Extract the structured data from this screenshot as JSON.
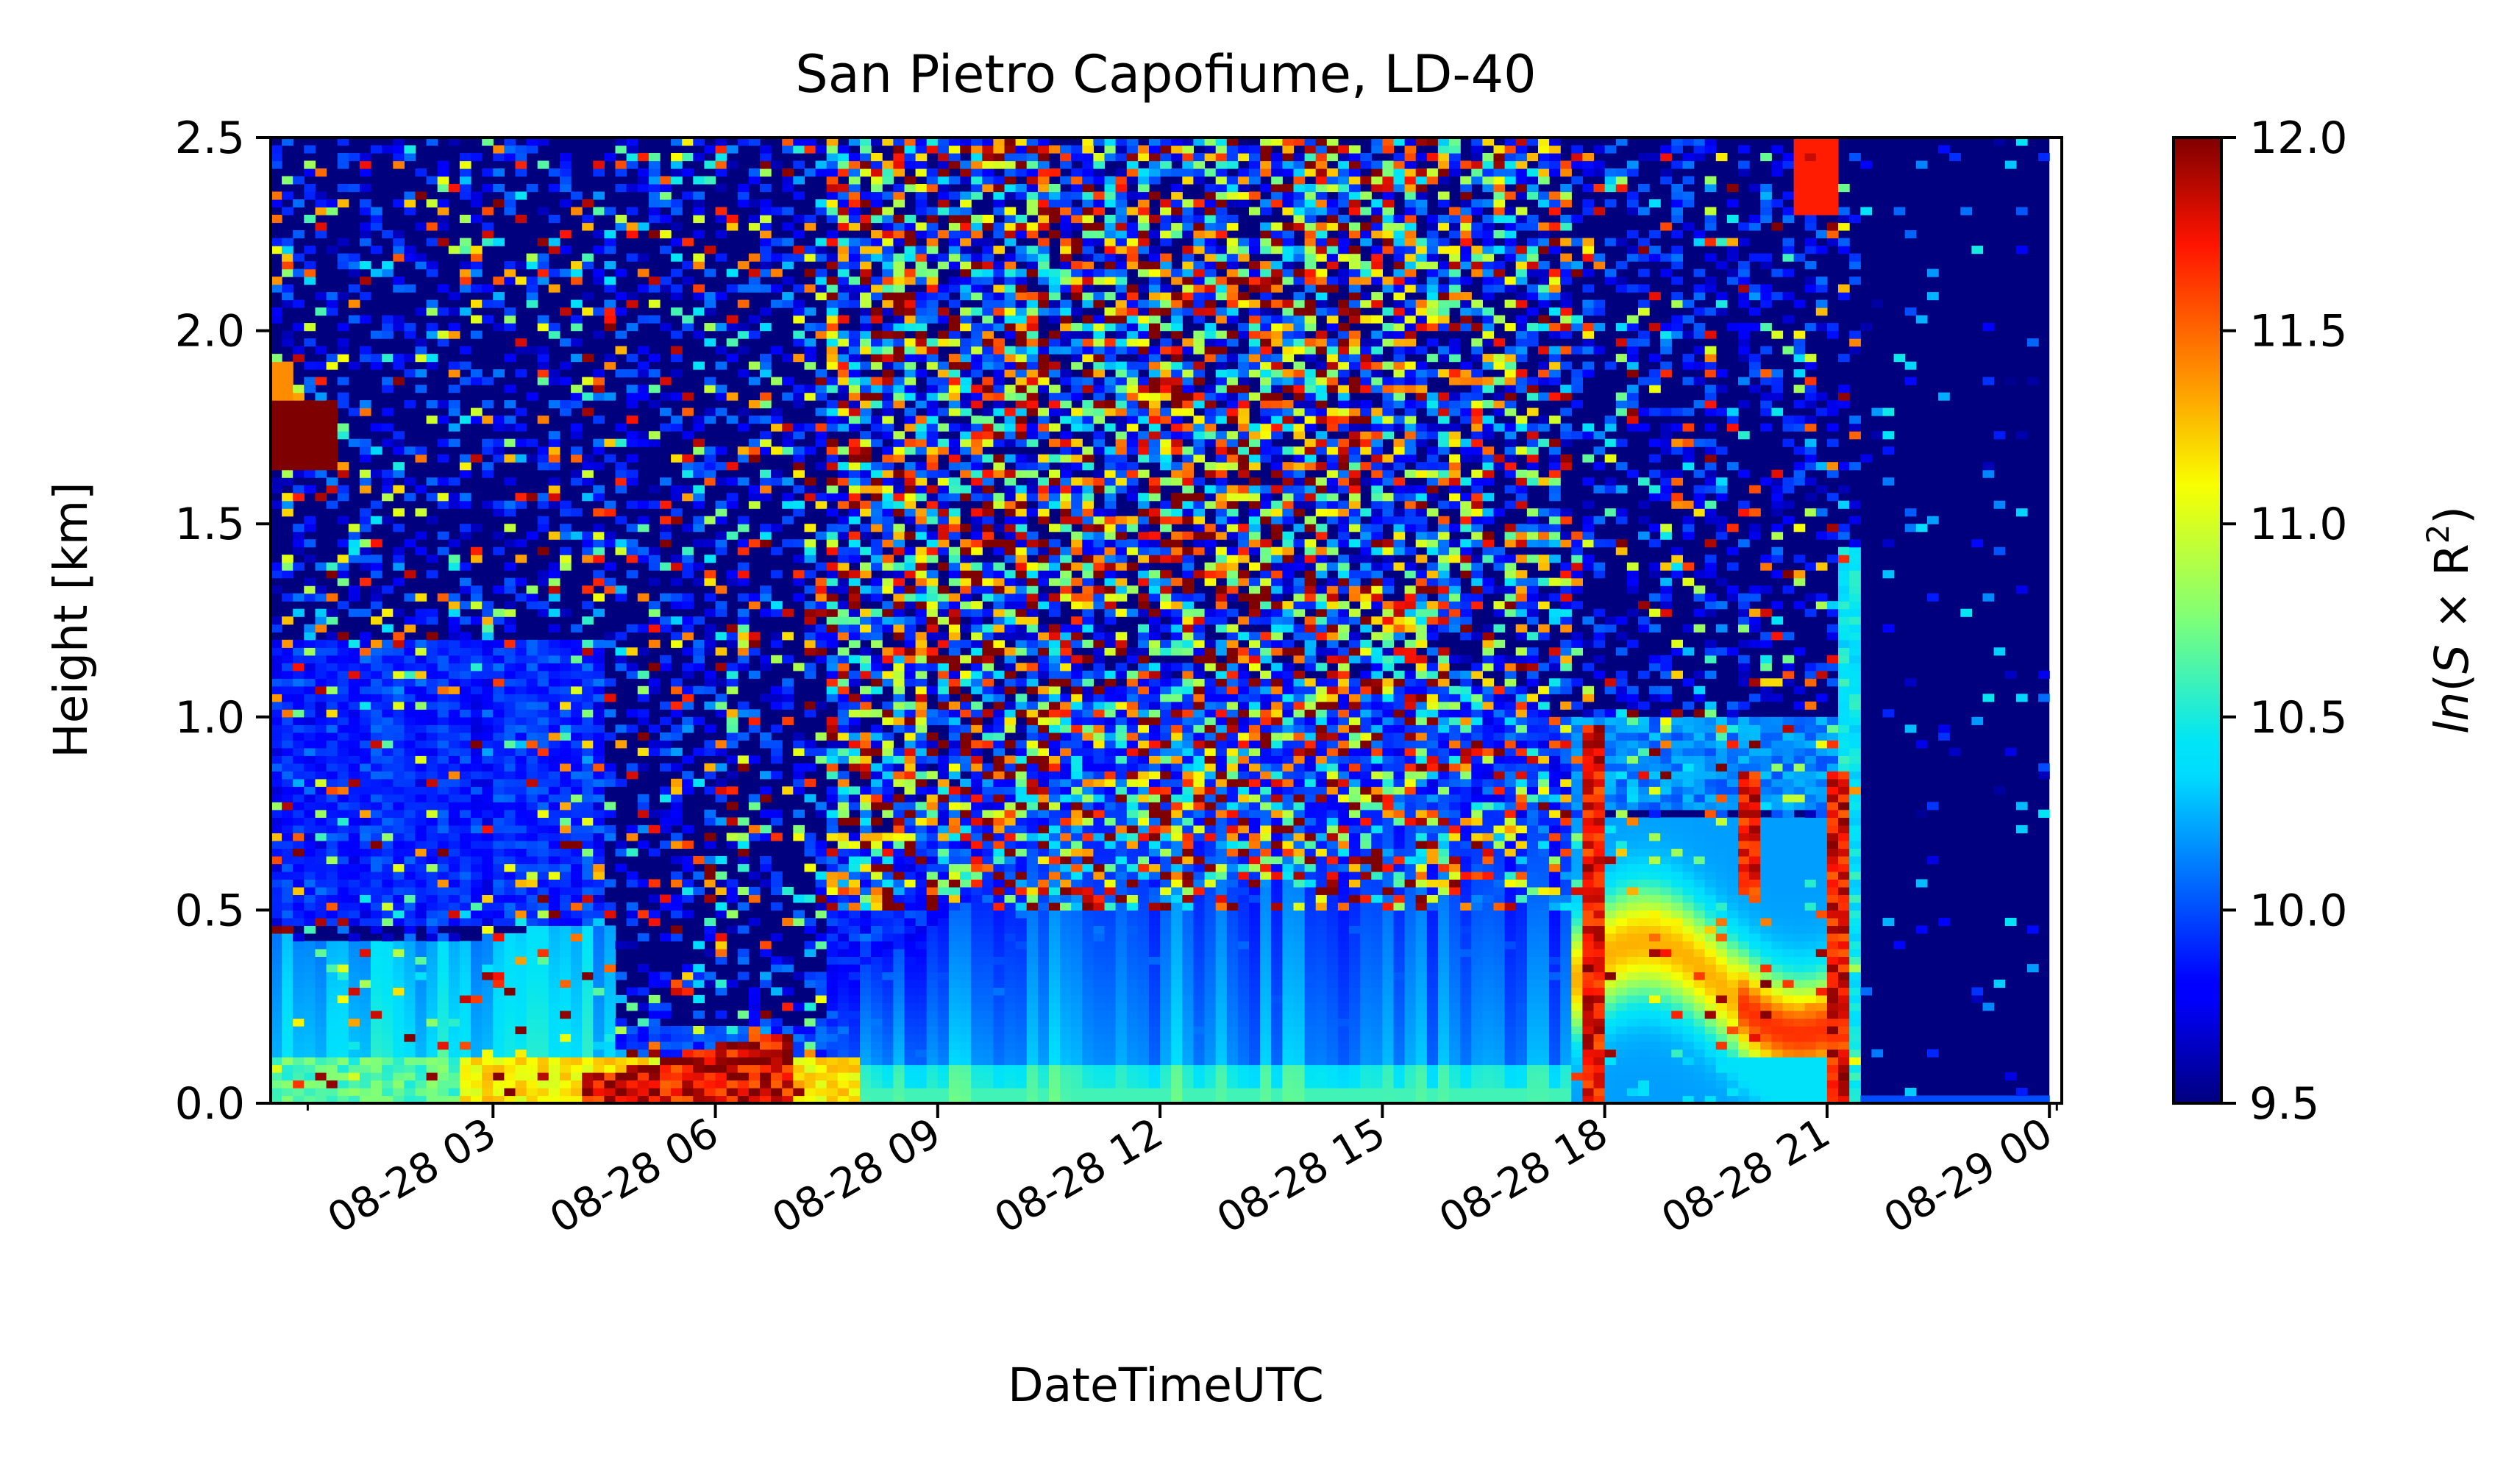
{
  "chart_data": {
    "type": "heatmap",
    "title": "San Pietro Capofiume, LD-40",
    "xlabel": "DateTimeUTC",
    "ylabel": "Height [km]",
    "colorbar_label": "ln(S × R²)",
    "colorbar_label_parts": {
      "func": "ln",
      "open": "(",
      "var": "S",
      "times": " × ",
      "base": "R",
      "sup": "2",
      "close": ")"
    },
    "colormap": "jet",
    "xlim": [
      "08-28 00:00",
      "08-29 00:10"
    ],
    "ylim": [
      0.0,
      2.5
    ],
    "clim": [
      9.5,
      12.0
    ],
    "x_ticks": [
      "08-28 03",
      "08-28 06",
      "08-28 09",
      "08-28 12",
      "08-28 15",
      "08-28 18",
      "08-28 21",
      "08-29 00"
    ],
    "x_tick_hours": [
      3,
      6,
      9,
      12,
      15,
      18,
      21,
      24
    ],
    "y_ticks": [
      "0.0",
      "0.5",
      "1.0",
      "1.5",
      "2.0",
      "2.5"
    ],
    "y_tick_values": [
      0.0,
      0.5,
      1.0,
      1.5,
      2.0,
      2.5
    ],
    "colorbar_ticks": [
      "9.5",
      "10.0",
      "10.5",
      "11.0",
      "11.5",
      "12.0"
    ],
    "colorbar_tick_values": [
      9.5,
      10.0,
      10.5,
      11.0,
      11.5,
      12.0
    ],
    "data_end_hour": 24.0,
    "columns_approx": 160,
    "features": [
      {
        "name": "residual-layer",
        "hours": [
          0.0,
          8.0
        ],
        "height_km": [
          0.05,
          0.45
        ],
        "value": 10.3
      },
      {
        "name": "surface-layer",
        "hours": [
          0.0,
          7.2
        ],
        "height_km": [
          0.0,
          0.12
        ],
        "value": 10.6
      },
      {
        "name": "nocturnal-surface-maximum",
        "hours": [
          4.2,
          7.0
        ],
        "height_km": [
          0.02,
          0.18
        ],
        "value": 12.0
      },
      {
        "name": "early-high-layer",
        "hours": [
          0.0,
          0.9
        ],
        "height_km": [
          1.65,
          1.82
        ],
        "value": 12.0
      },
      {
        "name": "convective-boundary-layer",
        "hours": [
          7.5,
          17.5
        ],
        "height_km": [
          0.0,
          1.0
        ],
        "value": 10.1
      },
      {
        "name": "evening-aerosol-layer",
        "hours": [
          17.5,
          21.2
        ],
        "height_km": [
          0.1,
          0.7
        ],
        "value": 11.3
      },
      {
        "name": "evening-spike-18",
        "hours": [
          17.7,
          18.0
        ],
        "height_km": [
          0.0,
          0.98
        ],
        "value": 12.0
      },
      {
        "name": "evening-spike-20",
        "hours": [
          19.8,
          20.1
        ],
        "height_km": [
          0.55,
          0.85
        ],
        "value": 11.9
      },
      {
        "name": "evening-spike-21",
        "hours": [
          21.0,
          21.25
        ],
        "height_km": [
          0.0,
          0.85
        ],
        "value": 12.0
      },
      {
        "name": "late-clear-period",
        "hours": [
          21.3,
          24.0
        ],
        "height_km": [
          0.0,
          2.5
        ],
        "value": 9.5
      }
    ]
  }
}
